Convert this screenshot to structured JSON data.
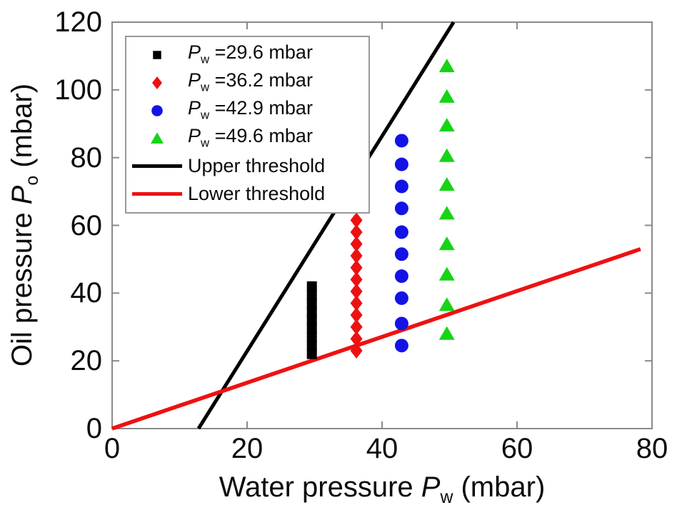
{
  "chart_data": {
    "type": "scatter",
    "title": "",
    "xlabel": {
      "pre": "Water pressure ",
      "sym": "P",
      "sub": "w",
      "post": " (mbar)"
    },
    "ylabel": {
      "pre": "Oil pressure ",
      "sym": "P",
      "sub": "o",
      "post": " (mbar)"
    },
    "xlim": [
      0,
      80
    ],
    "ylim": [
      0,
      120
    ],
    "xticks": [
      0,
      20,
      40,
      60,
      80
    ],
    "yticks": [
      0,
      20,
      40,
      60,
      80,
      100,
      120
    ],
    "grid": false,
    "legend_position": "upper-left-inside",
    "colors": {
      "axis": "#8a8a8a",
      "tick": "#8a8a8a",
      "black": "#000000",
      "red": "#ee1111",
      "blue": "#1313e6",
      "green": "#16d416",
      "legend_border": "#999999",
      "background": "#ffffff"
    },
    "series": [
      {
        "name": "Pw = 29.6 mbar",
        "marker": "square",
        "color": "#000000",
        "x": 29.6,
        "y": [
          22,
          24.5,
          27,
          29.5,
          32,
          34.5,
          37,
          39.5,
          42
        ]
      },
      {
        "name": "Pw = 36.2 mbar",
        "marker": "diamond",
        "color": "#ee1111",
        "x": 36.2,
        "y": [
          23,
          26.5,
          30,
          33.5,
          37,
          40.5,
          44,
          47.5,
          51,
          54.5,
          58,
          61.5
        ]
      },
      {
        "name": "Pw = 42.9 mbar",
        "marker": "circle",
        "color": "#1313e6",
        "x": 42.9,
        "y": [
          24.5,
          31,
          38.5,
          45,
          51.5,
          58,
          65,
          71.5,
          78,
          85
        ]
      },
      {
        "name": "Pw = 49.6 mbar",
        "marker": "triangle",
        "color": "#16d416",
        "x": 49.6,
        "y": [
          28,
          36.5,
          45.5,
          54.5,
          63.5,
          72,
          80.5,
          89.5,
          98,
          107
        ]
      }
    ],
    "lines": [
      {
        "name": "Upper threshold",
        "color": "#000000",
        "x": [
          12.8,
          50.6
        ],
        "y": [
          0,
          120
        ],
        "width": 5
      },
      {
        "name": "Lower threshold",
        "color": "#ee1111",
        "x": [
          0,
          78.3
        ],
        "y": [
          0,
          53
        ],
        "width": 5.5
      }
    ],
    "legend": {
      "entries": [
        {
          "type": "marker",
          "marker": "square",
          "color": "#000000",
          "sym": "P",
          "sub": "w",
          "rest": " =29.6 mbar"
        },
        {
          "type": "marker",
          "marker": "diamond",
          "color": "#ee1111",
          "sym": "P",
          "sub": "w",
          "rest": " =36.2 mbar"
        },
        {
          "type": "marker",
          "marker": "circle",
          "color": "#1313e6",
          "sym": "P",
          "sub": "w",
          "rest": " =42.9 mbar"
        },
        {
          "type": "marker",
          "marker": "triangle",
          "color": "#16d416",
          "sym": "P",
          "sub": "w",
          "rest": " =49.6 mbar"
        },
        {
          "type": "line",
          "color": "#000000",
          "rest": "Upper threshold"
        },
        {
          "type": "line",
          "color": "#ee1111",
          "rest": "Lower threshold"
        }
      ]
    }
  }
}
